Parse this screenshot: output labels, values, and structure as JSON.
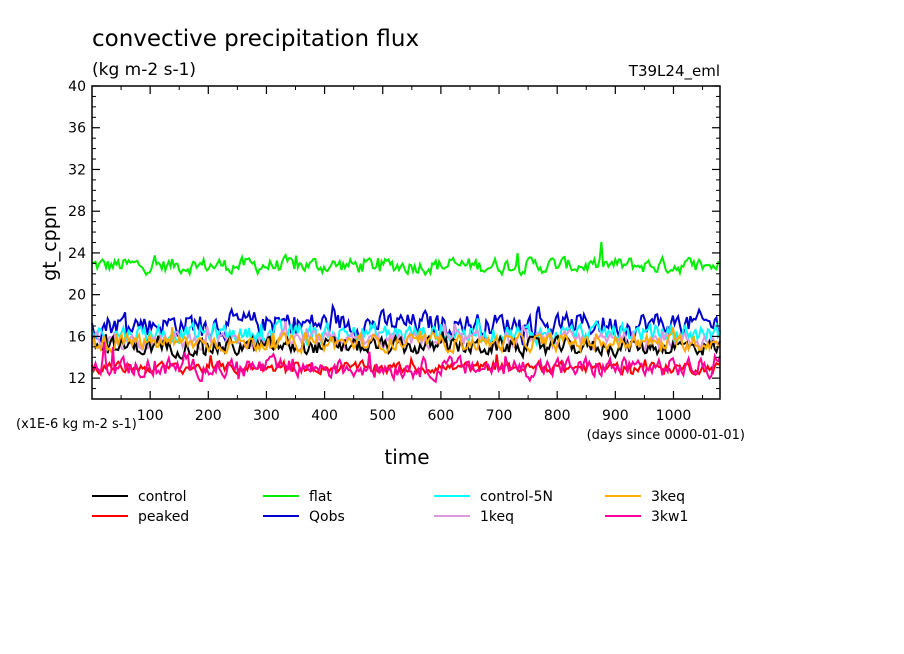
{
  "chart_data": {
    "type": "line",
    "title": "convective precipitation flux",
    "subtitle": "(kg m-2 s-1)",
    "experiment": "T39L24_eml",
    "ylabel": "gt_cppn",
    "xlabel": "time",
    "y_scale_note": "(x1E-6 kg m-2 s-1)",
    "x_unit_note": "(days since 0000-01-01)",
    "xlim": [
      0,
      1080
    ],
    "ylim": [
      10,
      40
    ],
    "x_ticks": [
      100,
      200,
      300,
      400,
      500,
      600,
      700,
      800,
      900,
      1000
    ],
    "y_ticks": [
      12,
      16,
      20,
      24,
      28,
      32,
      36,
      40
    ],
    "grid": false,
    "legend_position": "bottom",
    "series": [
      {
        "name": "control",
        "color": "#000000",
        "mean": 15.0,
        "amp": 1.3
      },
      {
        "name": "peaked",
        "color": "#ff0000",
        "mean": 13.0,
        "amp": 0.8
      },
      {
        "name": "flat",
        "color": "#00ee00",
        "mean": 22.8,
        "amp": 1.2
      },
      {
        "name": "Qobs",
        "color": "#0000cc",
        "mean": 17.2,
        "amp": 1.8
      },
      {
        "name": "control-5N",
        "color": "#00ffff",
        "mean": 16.3,
        "amp": 1.4
      },
      {
        "name": "1keq",
        "color": "#dd99dd",
        "mean": 15.6,
        "amp": 1.2
      },
      {
        "name": "3keq",
        "color": "#ffaa00",
        "mean": 15.4,
        "amp": 1.2
      },
      {
        "name": "3kw1",
        "color": "#ff0099",
        "mean": 13.0,
        "amp": 1.5
      }
    ]
  }
}
